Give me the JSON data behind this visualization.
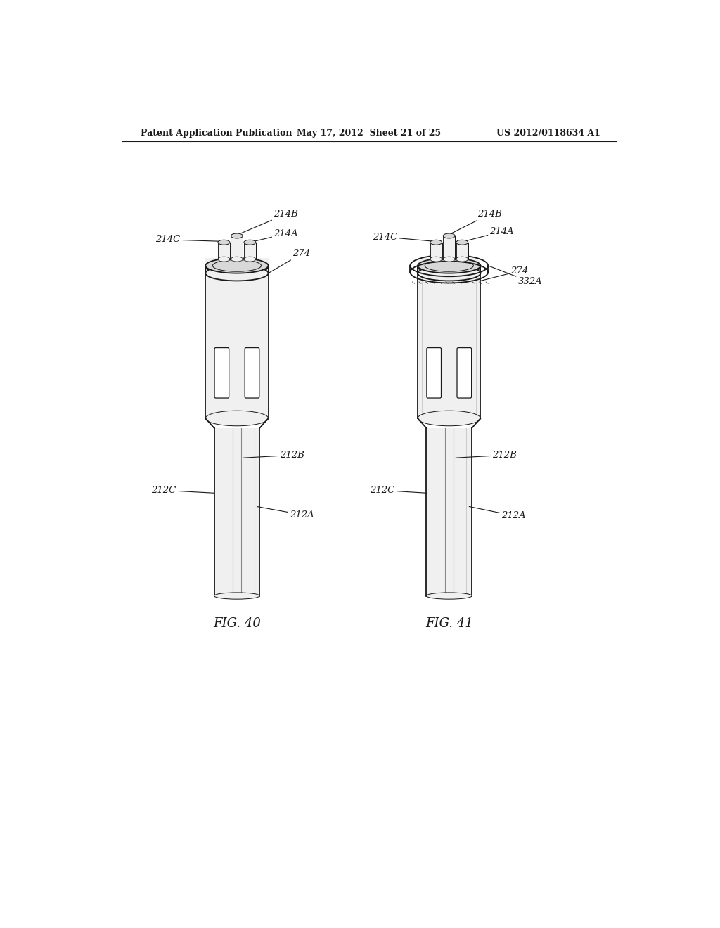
{
  "bg_color": "#ffffff",
  "line_color": "#1a1a1a",
  "header_left": "Patent Application Publication",
  "header_center": "May 17, 2012  Sheet 21 of 25",
  "header_right": "US 2012/0118634 A1",
  "fig40_label": "FIG. 40",
  "fig41_label": "FIG. 41"
}
